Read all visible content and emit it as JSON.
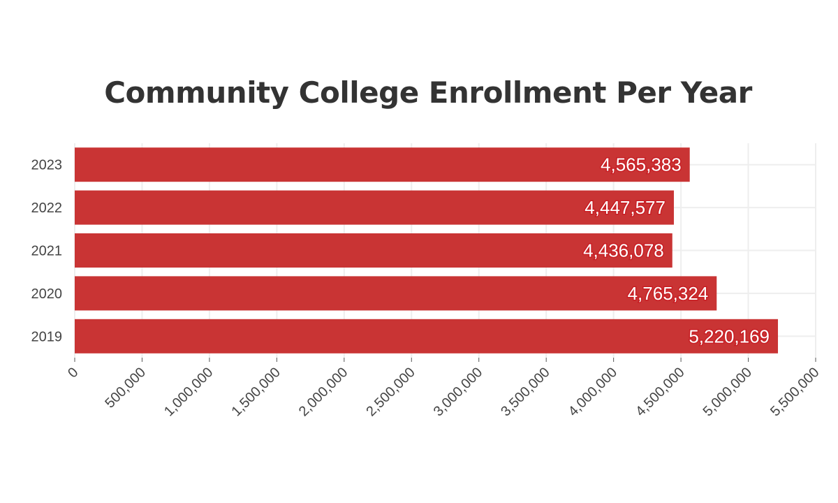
{
  "chart_data": {
    "type": "bar",
    "orientation": "horizontal",
    "title": "Community College Enrollment Per Year",
    "categories": [
      "2019",
      "2020",
      "2021",
      "2022",
      "2023"
    ],
    "values": [
      5220169,
      4765324,
      4436078,
      4447577,
      4565383
    ],
    "value_labels": [
      "5,220,169",
      "4,765,324",
      "4,436,078",
      "4,447,577",
      "4,565,383"
    ],
    "xlabel": "",
    "ylabel": "",
    "xlim": [
      0,
      5500000
    ],
    "xticks": [
      0,
      500000,
      1000000,
      1500000,
      2000000,
      2500000,
      3000000,
      3500000,
      4000000,
      4500000,
      5000000,
      5500000
    ],
    "xtick_labels": [
      "0",
      "500,000",
      "1,000,000",
      "1,500,000",
      "2,000,000",
      "2,500,000",
      "3,000,000",
      "3,500,000",
      "4,000,000",
      "4,500,000",
      "5,000,000",
      "5,500,000"
    ],
    "grid": true,
    "legend": "none",
    "colors": {
      "bar": "#c93434",
      "label_outline": "#c81e24",
      "grid": "#eeeeee",
      "title": "#333333"
    }
  }
}
